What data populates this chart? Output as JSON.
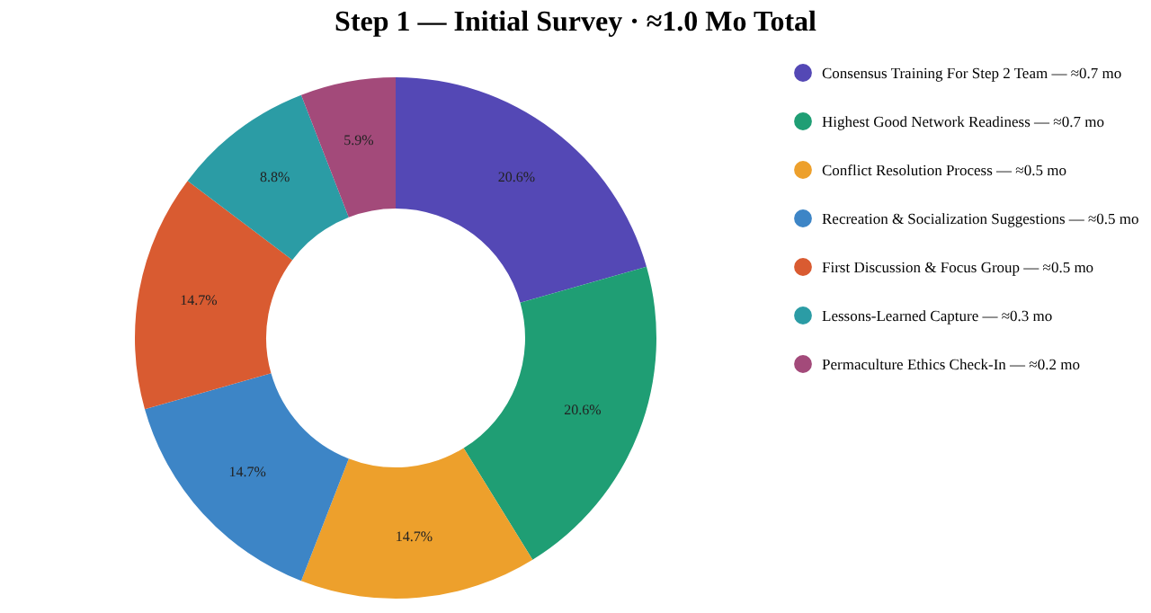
{
  "chart_data": {
    "type": "donut",
    "title": "Step 1 — Initial Survey · ≈1.0 Mo Total",
    "categories": [
      "Consensus Training For Step 2 Team  —  ≈0.7 mo",
      "Highest Good Network Readiness  —  ≈0.7 mo",
      "Conflict Resolution Process  —  ≈0.5 mo",
      "Recreation & Socialization Suggestions  —  ≈0.5 mo",
      "First Discussion & Focus Group  —  ≈0.5 mo",
      "Lessons-Learned Capture  —  ≈0.3 mo",
      "Permaculture Ethics Check-In  —  ≈0.2 mo"
    ],
    "values": [
      20.6,
      20.6,
      14.7,
      14.7,
      14.7,
      8.8,
      5.9
    ],
    "value_labels": [
      "20.6%",
      "20.6%",
      "14.7%",
      "14.7%",
      "14.7%",
      "8.8%",
      "5.9%"
    ],
    "colors": [
      "#5448b5",
      "#1f9e74",
      "#eda02c",
      "#3d85c6",
      "#d95b31",
      "#2b9ca5",
      "#a34a7a"
    ],
    "legend": "top right"
  }
}
